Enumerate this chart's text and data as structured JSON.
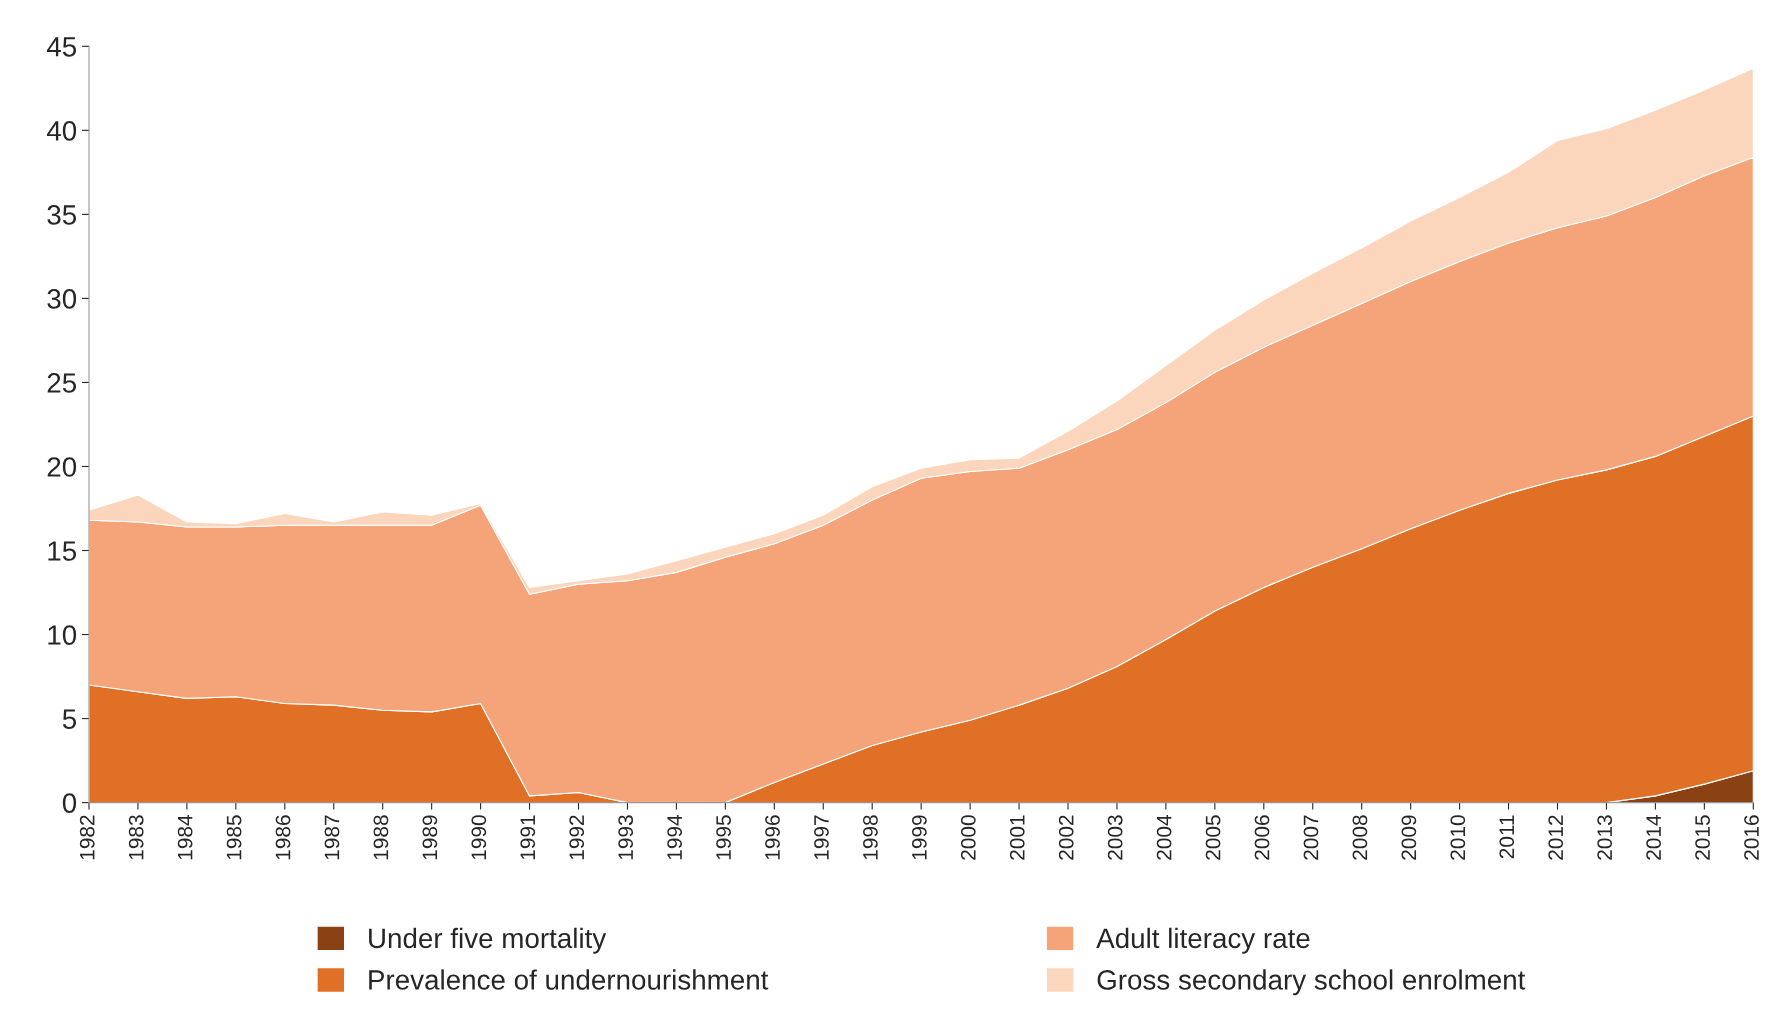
{
  "chart_data": {
    "type": "area",
    "stacked": true,
    "categories": [
      "1982",
      "1983",
      "1984",
      "1985",
      "1986",
      "1987",
      "1988",
      "1989",
      "1990",
      "1991",
      "1992",
      "1993",
      "1994",
      "1995",
      "1996",
      "1997",
      "1998",
      "1999",
      "2000",
      "2001",
      "2002",
      "2003",
      "2004",
      "2005",
      "2006",
      "2007",
      "2008",
      "2009",
      "2010",
      "2011",
      "2012",
      "2013",
      "2014",
      "2015",
      "2016"
    ],
    "series": [
      {
        "name": "Under five mortality",
        "color": "#8a4214",
        "values": [
          0,
          0,
          0,
          0,
          0,
          0,
          0,
          0,
          0,
          0,
          0,
          0,
          0,
          0,
          0,
          0,
          0,
          0,
          0,
          0,
          0,
          0,
          0,
          0,
          0,
          0,
          0,
          0,
          0,
          0,
          0,
          0,
          0.4,
          1.1,
          1.9
        ]
      },
      {
        "name": "Prevalence of undernourishment",
        "color": "#e07025",
        "values": [
          7.0,
          6.6,
          6.2,
          6.3,
          5.9,
          5.8,
          5.5,
          5.4,
          5.9,
          0.4,
          0.6,
          0,
          0,
          0,
          1.2,
          2.3,
          3.4,
          4.2,
          4.9,
          5.8,
          6.8,
          8.1,
          9.7,
          11.4,
          12.8,
          14.0,
          15.1,
          16.3,
          17.4,
          18.4,
          19.2,
          19.8,
          20.2,
          20.7,
          21.1
        ]
      },
      {
        "name": "Adult literacy rate",
        "color": "#f5a378",
        "values": [
          9.8,
          10.1,
          10.2,
          10.1,
          10.6,
          10.7,
          11.0,
          11.1,
          11.8,
          12.0,
          12.4,
          13.2,
          13.7,
          14.6,
          14.2,
          14.2,
          14.6,
          15.1,
          14.8,
          14.1,
          14.2,
          14.1,
          14.1,
          14.2,
          14.3,
          14.4,
          14.6,
          14.7,
          14.8,
          14.9,
          15.0,
          15.1,
          15.4,
          15.5,
          15.4
        ]
      },
      {
        "name": "Gross secondary school enrolment",
        "color": "#fbd5bc",
        "values": [
          0.6,
          1.6,
          0.3,
          0.2,
          0.7,
          0.2,
          0.8,
          0.6,
          0.1,
          0.4,
          0.2,
          0.4,
          0.7,
          0.6,
          0.6,
          0.6,
          0.8,
          0.6,
          0.7,
          0.6,
          1.1,
          1.7,
          2.2,
          2.5,
          2.8,
          3.1,
          3.3,
          3.6,
          3.8,
          4.2,
          5.2,
          5.2,
          5.2,
          5.1,
          5.3
        ]
      }
    ],
    "ylim": [
      0,
      45
    ],
    "yticks": [
      0,
      5,
      10,
      15,
      20,
      25,
      30,
      35,
      40,
      45
    ],
    "grid": false,
    "legend": "bottom"
  }
}
